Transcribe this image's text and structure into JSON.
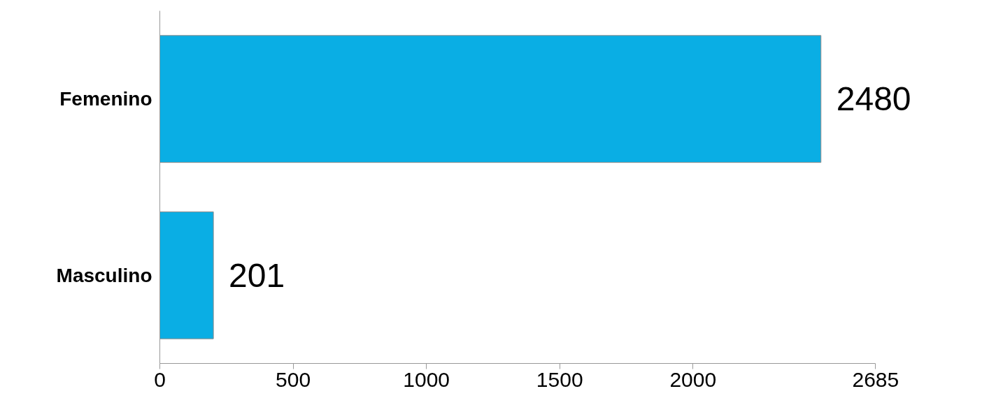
{
  "chart_data": {
    "type": "bar",
    "orientation": "horizontal",
    "categories": [
      "Femenino",
      "Masculino"
    ],
    "values": [
      2480,
      201
    ],
    "color": "#0aaee4",
    "xlim": [
      0,
      2685
    ],
    "xticks": [
      0,
      500,
      1000,
      1500,
      2000,
      2685
    ],
    "data_labels": true,
    "grid": false,
    "legend": false
  }
}
